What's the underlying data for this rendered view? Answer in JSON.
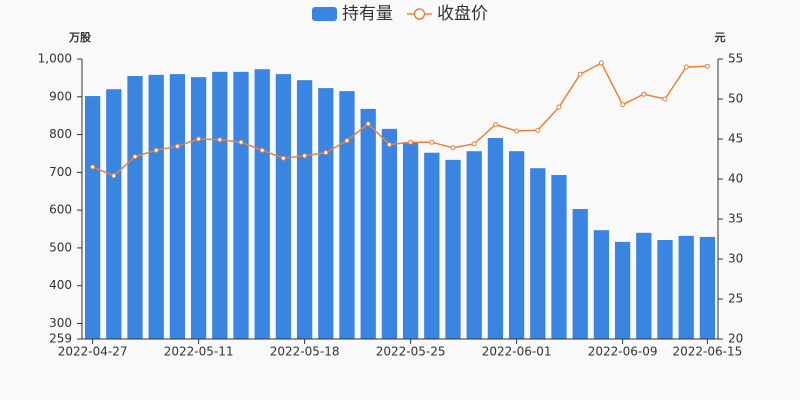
{
  "chart_data": {
    "type": "bar_line",
    "y_label": "万股",
    "y2_label": "元",
    "categories": [
      "2022-04-27",
      null,
      null,
      null,
      null,
      "2022-05-11",
      null,
      null,
      null,
      null,
      "2022-05-18",
      null,
      null,
      null,
      null,
      "2022-05-25",
      null,
      null,
      null,
      null,
      "2022-06-01",
      null,
      null,
      null,
      null,
      "2022-06-09",
      null,
      null,
      null,
      "2022-06-15"
    ],
    "series": [
      {
        "name": "持有量",
        "type": "bar",
        "color": "#3a84e2",
        "axis": "y",
        "values": [
          902,
          920,
          955,
          958,
          960,
          952,
          966,
          966,
          973,
          960,
          944,
          923,
          915,
          868,
          815,
          780,
          752,
          733,
          756,
          791,
          756,
          711,
          693,
          603,
          547,
          516,
          540,
          521,
          532,
          529
        ]
      },
      {
        "name": "收盘价",
        "type": "line",
        "color": "#e8833a",
        "axis": "y2",
        "values": [
          41.5,
          40.4,
          42.8,
          43.6,
          44.1,
          45.0,
          44.9,
          44.6,
          43.6,
          42.6,
          42.9,
          43.3,
          44.8,
          46.9,
          44.3,
          44.6,
          44.6,
          43.9,
          44.4,
          46.8,
          46.0,
          46.1,
          49.0,
          53.1,
          54.5,
          49.3,
          50.6,
          50.0,
          54.0,
          54.1
        ]
      }
    ],
    "ylim": [
      259,
      1000
    ],
    "yticks": [
      259,
      300,
      400,
      500,
      600,
      700,
      800,
      900,
      {
        "value": 1000,
        "label": "1,000"
      }
    ],
    "y2lim": [
      20,
      55
    ],
    "y2ticks": [
      20,
      25,
      30,
      35,
      40,
      45,
      50,
      55
    ],
    "grid": false,
    "legend": "top"
  }
}
